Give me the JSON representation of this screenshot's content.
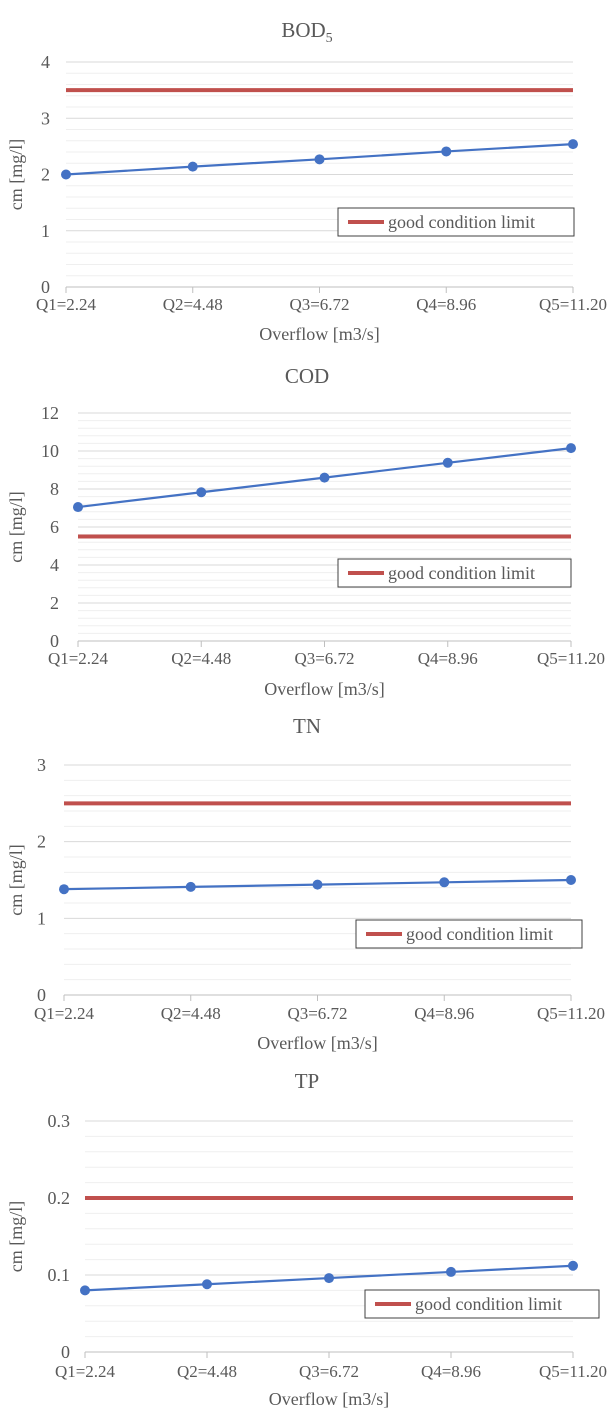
{
  "colors": {
    "series": "#4472C4",
    "limit": "#C0504D",
    "grid": "#D9D9D9",
    "axis": "#BFBFBF",
    "text": "#595959"
  },
  "chart_data": [
    {
      "type": "line",
      "title": "BOD",
      "title_sub": "5",
      "xlabel": "Overflow [m3/s]",
      "ylabel": "cm [mg/l]",
      "categories": [
        "Q1=2.24",
        "Q2=4.48",
        "Q3=6.72",
        "Q4=8.96",
        "Q5=11.20"
      ],
      "series": [
        {
          "values": [
            2.0,
            2.14,
            2.27,
            2.41,
            2.54
          ]
        },
        {
          "name": "good condition limit",
          "values": [
            3.5,
            3.5,
            3.5,
            3.5,
            3.5
          ]
        }
      ],
      "ylim": [
        0,
        4
      ],
      "yticks": [
        "0",
        "1",
        "2",
        "3",
        "4"
      ],
      "minor_gridlines": true,
      "legend": "bottom-right"
    },
    {
      "type": "line",
      "title": "COD",
      "xlabel": "Overflow [m3/s]",
      "ylabel": "cm [mg/l]",
      "categories": [
        "Q1=2.24",
        "Q2=4.48",
        "Q3=6.72",
        "Q4=8.96",
        "Q5=11.20"
      ],
      "series": [
        {
          "values": [
            7.05,
            7.83,
            8.6,
            9.38,
            10.15
          ]
        },
        {
          "name": "good condition limit",
          "values": [
            5.5,
            5.5,
            5.5,
            5.5,
            5.5
          ]
        }
      ],
      "ylim": [
        0,
        12
      ],
      "yticks": [
        "0",
        "2",
        "4",
        "6",
        "8",
        "10",
        "12"
      ],
      "minor_gridlines": true,
      "legend": "bottom-right"
    },
    {
      "type": "line",
      "title": "TN",
      "xlabel": "Overflow [m3/s]",
      "ylabel": "cm [mg/l]",
      "categories": [
        "Q1=2.24",
        "Q2=4.48",
        "Q3=6.72",
        "Q4=8.96",
        "Q5=11.20"
      ],
      "series": [
        {
          "values": [
            1.38,
            1.41,
            1.44,
            1.47,
            1.5
          ]
        },
        {
          "name": "good condition limit",
          "values": [
            2.5,
            2.5,
            2.5,
            2.5,
            2.5
          ]
        }
      ],
      "ylim": [
        0,
        3
      ],
      "yticks": [
        "0",
        "1",
        "2",
        "3"
      ],
      "minor_gridlines": true,
      "legend": "bottom-right"
    },
    {
      "type": "line",
      "title": "TP",
      "xlabel": "Overflow [m3/s]",
      "ylabel": "cm [mg/l]",
      "categories": [
        "Q1=2.24",
        "Q2=4.48",
        "Q3=6.72",
        "Q4=8.96",
        "Q5=11.20"
      ],
      "series": [
        {
          "values": [
            0.08,
            0.088,
            0.096,
            0.104,
            0.112
          ]
        },
        {
          "name": "good condition limit",
          "values": [
            0.2,
            0.2,
            0.2,
            0.2,
            0.2
          ]
        }
      ],
      "ylim": [
        0,
        0.3
      ],
      "yticks": [
        "0",
        "0.1",
        "0.2",
        "0.3"
      ],
      "minor_gridlines": true,
      "legend": "bottom-right"
    }
  ]
}
